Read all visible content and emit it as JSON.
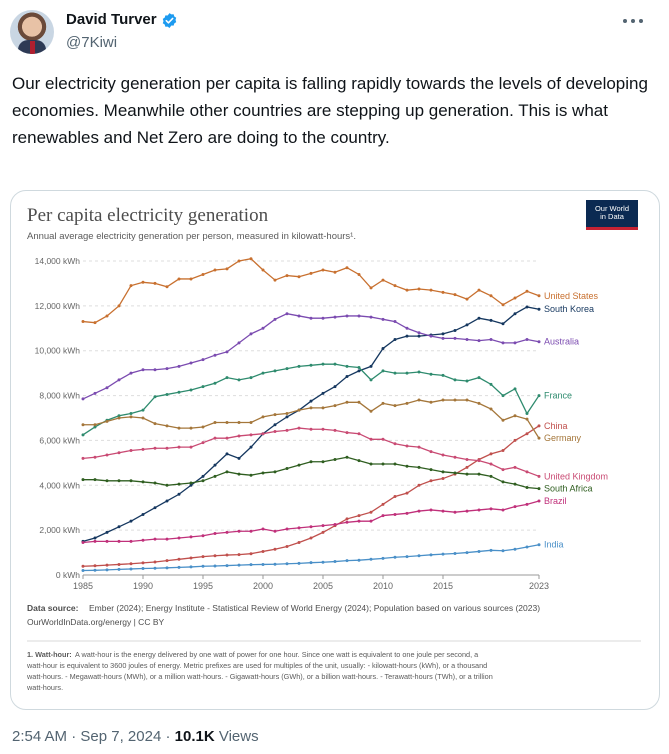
{
  "tweet": {
    "display_name": "David Turver",
    "handle": "@7Kiwi",
    "text": "Our electricity generation per capita is falling rapidly towards the levels of developing economies. Meanwhile other countries are stepping up generation. This is what renewables and Net Zero are doing to the country.",
    "time": "2:54 AM",
    "date": "Sep 7, 2024",
    "views_count": "10.1K",
    "views_label": "Views",
    "more_icon": "ellipsis-icon",
    "verified_icon": "verified-badge-icon"
  },
  "owid_logo": {
    "line1": "Our World",
    "line2": "in Data"
  },
  "chart_data": {
    "type": "line",
    "title": "Per capita electricity generation",
    "subtitle": "Annual average electricity generation per person, measured in kilowatt-hours¹.",
    "ylim": [
      0,
      14000
    ],
    "y_ticks": [
      "0 kWh",
      "2,000 kWh",
      "4,000 kWh",
      "6,000 kWh",
      "8,000 kWh",
      "10,000 kWh",
      "12,000 kWh",
      "14,000 kWh"
    ],
    "x_ticks": [
      "1985",
      "1990",
      "1995",
      "2000",
      "2005",
      "2010",
      "2015",
      "2023"
    ],
    "x": [
      1985,
      1986,
      1987,
      1988,
      1989,
      1990,
      1991,
      1992,
      1993,
      1994,
      1995,
      1996,
      1997,
      1998,
      1999,
      2000,
      2001,
      2002,
      2003,
      2004,
      2005,
      2006,
      2007,
      2008,
      2009,
      2010,
      2011,
      2012,
      2013,
      2014,
      2015,
      2016,
      2017,
      2018,
      2019,
      2020,
      2021,
      2022,
      2023
    ],
    "series": [
      {
        "name": "United States",
        "color": "#c8702f",
        "values": [
          11300,
          11250,
          11550,
          12000,
          12900,
          13050,
          13000,
          12850,
          13200,
          13200,
          13400,
          13600,
          13650,
          14000,
          14100,
          13600,
          13150,
          13350,
          13300,
          13450,
          13600,
          13500,
          13700,
          13400,
          12800,
          13150,
          12900,
          12700,
          12750,
          12700,
          12600,
          12500,
          12300,
          12700,
          12450,
          12050,
          12350,
          12650,
          12450
        ]
      },
      {
        "name": "South Korea",
        "color": "#15375f",
        "values": [
          1500,
          1650,
          1900,
          2150,
          2400,
          2700,
          3000,
          3300,
          3600,
          4000,
          4400,
          4900,
          5400,
          5200,
          5700,
          6300,
          6700,
          7050,
          7350,
          7750,
          8100,
          8400,
          8850,
          9100,
          9300,
          10100,
          10500,
          10650,
          10650,
          10700,
          10750,
          10900,
          11150,
          11450,
          11350,
          11200,
          11650,
          11950,
          11850
        ]
      },
      {
        "name": "Australia",
        "color": "#7b4bb0",
        "values": [
          7850,
          8100,
          8350,
          8700,
          9000,
          9150,
          9150,
          9200,
          9300,
          9450,
          9600,
          9800,
          9950,
          10350,
          10750,
          11000,
          11400,
          11650,
          11550,
          11450,
          11450,
          11500,
          11550,
          11550,
          11500,
          11400,
          11300,
          11000,
          10800,
          10650,
          10550,
          10550,
          10500,
          10450,
          10500,
          10350,
          10350,
          10500,
          10400
        ]
      },
      {
        "name": "France",
        "color": "#2e8b6e",
        "values": [
          6250,
          6600,
          6900,
          7100,
          7200,
          7350,
          7950,
          8050,
          8150,
          8250,
          8400,
          8550,
          8800,
          8700,
          8800,
          9000,
          9100,
          9200,
          9300,
          9350,
          9400,
          9400,
          9300,
          9250,
          8700,
          9100,
          9000,
          9000,
          9050,
          8950,
          8900,
          8700,
          8650,
          8800,
          8500,
          8000,
          8300,
          7200,
          8000
        ]
      },
      {
        "name": "China",
        "color": "#c0504d",
        "values": [
          390,
          410,
          440,
          470,
          500,
          540,
          580,
          640,
          700,
          760,
          820,
          860,
          890,
          910,
          950,
          1050,
          1150,
          1270,
          1450,
          1650,
          1900,
          2200,
          2500,
          2650,
          2800,
          3150,
          3500,
          3650,
          4000,
          4200,
          4300,
          4500,
          4800,
          5150,
          5400,
          5550,
          6000,
          6300,
          6650
        ]
      },
      {
        "name": "Germany",
        "color": "#a4763a",
        "values": [
          6700,
          6700,
          6850,
          7000,
          7050,
          7000,
          6750,
          6650,
          6550,
          6550,
          6600,
          6800,
          6800,
          6800,
          6800,
          7050,
          7150,
          7200,
          7350,
          7450,
          7450,
          7550,
          7700,
          7700,
          7300,
          7650,
          7550,
          7650,
          7800,
          7700,
          7800,
          7800,
          7800,
          7650,
          7400,
          6900,
          7100,
          6950,
          6100
        ]
      },
      {
        "name": "United Kingdom",
        "color": "#c94a73",
        "values": [
          5200,
          5250,
          5350,
          5450,
          5550,
          5600,
          5650,
          5650,
          5700,
          5700,
          5900,
          6100,
          6100,
          6200,
          6250,
          6300,
          6400,
          6450,
          6550,
          6500,
          6500,
          6450,
          6350,
          6300,
          6050,
          6050,
          5850,
          5750,
          5700,
          5500,
          5350,
          5250,
          5150,
          5100,
          4950,
          4700,
          4800,
          4600,
          4400
        ]
      },
      {
        "name": "South Africa",
        "color": "#2f5e20",
        "values": [
          4250,
          4250,
          4200,
          4200,
          4200,
          4150,
          4100,
          4000,
          4050,
          4100,
          4200,
          4400,
          4600,
          4500,
          4450,
          4550,
          4600,
          4750,
          4900,
          5050,
          5050,
          5150,
          5250,
          5100,
          4950,
          4950,
          4950,
          4850,
          4800,
          4700,
          4600,
          4550,
          4500,
          4500,
          4400,
          4150,
          4050,
          3900,
          3850
        ]
      },
      {
        "name": "Brazil",
        "color": "#c0307a",
        "values": [
          1450,
          1500,
          1500,
          1500,
          1500,
          1550,
          1600,
          1600,
          1650,
          1700,
          1750,
          1850,
          1900,
          1950,
          1950,
          2050,
          1950,
          2050,
          2100,
          2150,
          2200,
          2250,
          2350,
          2400,
          2400,
          2650,
          2700,
          2750,
          2850,
          2900,
          2850,
          2800,
          2850,
          2900,
          2950,
          2900,
          3050,
          3150,
          3300
        ]
      },
      {
        "name": "India",
        "color": "#4a90c8",
        "values": [
          200,
          210,
          230,
          250,
          270,
          290,
          300,
          320,
          340,
          360,
          390,
          400,
          420,
          440,
          460,
          470,
          480,
          500,
          520,
          550,
          570,
          600,
          640,
          660,
          700,
          740,
          790,
          820,
          860,
          900,
          930,
          960,
          1000,
          1050,
          1100,
          1080,
          1150,
          1250,
          1350
        ]
      }
    ]
  },
  "source": {
    "label": "Data source:",
    "text": "Ember (2024); Energy Institute - Statistical Review of World Energy (2024); Population based on various sources (2023)",
    "line2": "OurWorldInData.org/energy | CC BY"
  },
  "footnote": {
    "label": "1. Watt-hour:",
    "line1": "A watt-hour is the energy delivered by one watt of power for one hour. Since one watt is equivalent to one joule per second, a",
    "line2": "watt-hour is equivalent to 3600 joules of energy. Metric prefixes are used for multiples of the unit, usually: - kilowatt-hours (kWh), or a thousand",
    "line3": "watt-hours. - Megawatt-hours (MWh), or a million watt-hours. - Gigawatt-hours (GWh), or a billion watt-hours. - Terawatt-hours (TWh), or a trillion",
    "line4": "watt-hours."
  }
}
